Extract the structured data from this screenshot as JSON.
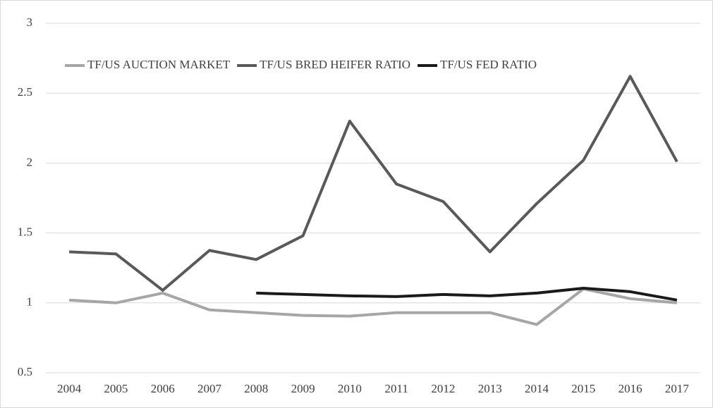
{
  "chart_data": {
    "type": "line",
    "categories": [
      "2004",
      "2005",
      "2006",
      "2007",
      "2008",
      "2009",
      "2010",
      "2011",
      "2012",
      "2013",
      "2014",
      "2015",
      "2016",
      "2017"
    ],
    "series": [
      {
        "name": "TF/US AUCTION MARKET",
        "color": "#a6a6a6",
        "values": [
          1.02,
          1.0,
          1.07,
          0.95,
          0.93,
          0.91,
          0.905,
          0.93,
          0.93,
          0.93,
          0.845,
          1.1,
          1.03,
          1.0
        ]
      },
      {
        "name": "TF/US BRED HEIFER RATIO",
        "color": "#595959",
        "values": [
          1.365,
          1.35,
          1.09,
          1.375,
          1.31,
          1.48,
          2.3,
          1.85,
          1.725,
          1.365,
          1.71,
          2.02,
          2.62,
          2.01
        ]
      },
      {
        "name": "TF/US FED RATIO",
        "color": "#1a1a1a",
        "values": [
          null,
          null,
          null,
          null,
          1.07,
          1.06,
          1.05,
          1.045,
          1.06,
          1.05,
          1.07,
          1.105,
          1.08,
          1.02
        ]
      }
    ],
    "ylim": [
      0.5,
      3
    ],
    "yticks": [
      0.5,
      1,
      1.5,
      2,
      2.5,
      3
    ],
    "grid": true,
    "legend": "top"
  }
}
